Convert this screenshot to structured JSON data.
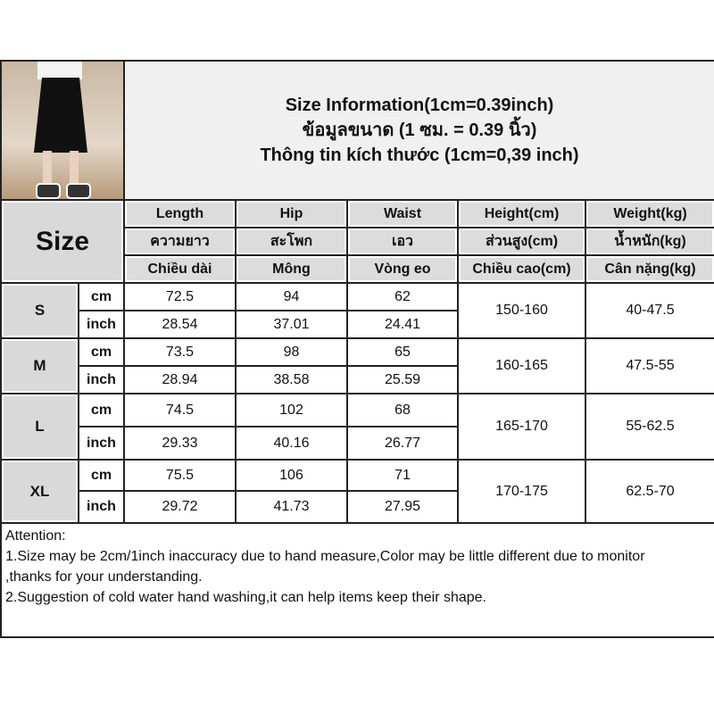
{
  "title": {
    "en": "Size Information(1cm=0.39inch)",
    "th": "ข้อมูลขนาด (1 ซม. = 0.39 นิ้ว)",
    "vi": "Thông tin kích thước (1cm=0,39 inch)"
  },
  "size_label": "Size",
  "columns": [
    {
      "en": "Length",
      "th": "ความยาว",
      "vi": "Chiều dài"
    },
    {
      "en": "Hip",
      "th": "สะโพก",
      "vi": "Mông"
    },
    {
      "en": "Waist",
      "th": "เอว",
      "vi": "Vòng eo"
    },
    {
      "en": "Height(cm)",
      "th": "ส่วนสูง(cm)",
      "vi": "Chiều cao(cm)"
    },
    {
      "en": "Weight(kg)",
      "th": "น้ำหนัก(kg)",
      "vi": "Cân nặng(kg)"
    }
  ],
  "units": {
    "cm": "cm",
    "inch": "inch"
  },
  "rows": [
    {
      "size": "S",
      "cm": [
        "72.5",
        "94",
        "62"
      ],
      "inch": [
        "28.54",
        "37.01",
        "24.41"
      ],
      "height": "150-160",
      "weight": "40-47.5"
    },
    {
      "size": "M",
      "cm": [
        "73.5",
        "98",
        "65"
      ],
      "inch": [
        "28.94",
        "38.58",
        "25.59"
      ],
      "height": "160-165",
      "weight": "47.5-55"
    },
    {
      "size": "L",
      "cm": [
        "74.5",
        "102",
        "68"
      ],
      "inch": [
        "29.33",
        "40.16",
        "26.77"
      ],
      "height": "165-170",
      "weight": "55-62.5"
    },
    {
      "size": "XL",
      "cm": [
        "75.5",
        "106",
        "71"
      ],
      "inch": [
        "29.72",
        "41.73",
        "27.95"
      ],
      "height": "170-175",
      "weight": "62.5-70"
    }
  ],
  "attention": {
    "heading": "Attention:",
    "line1": "1.Size may be 2cm/1inch inaccuracy due to hand measure,Color may be little different due to monitor",
    "line1b": ",thanks for your understanding.",
    "line2": "2.Suggestion of cold water hand washing,it can help items keep their shape."
  }
}
